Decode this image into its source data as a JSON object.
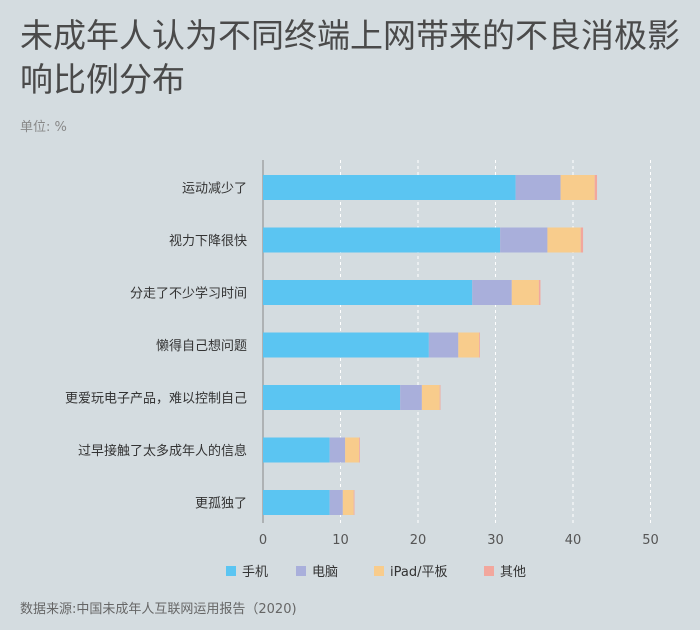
{
  "header": {
    "title": "未成年人认为不同终端上网带来的不良消极影响比例分布",
    "unit": "单位: %"
  },
  "footer": {
    "source": "数据来源:中国未成年人互联网运用报告（2020)"
  },
  "colors": {
    "series": [
      "#5bc5f2",
      "#a9afdb",
      "#f8cc8c",
      "#f2a79d"
    ],
    "grid": "#ffffff",
    "axis": "#555555"
  },
  "chart_data": {
    "type": "bar",
    "orientation": "horizontal",
    "stacked": true,
    "categories": [
      "运动减少了",
      "视力下降很快",
      "分走了不少学习时间",
      "懒得自己想问题",
      "更爱玩电子产品，难以控制自己",
      "过早接触了太多成年人的信息",
      "更孤独了"
    ],
    "series": [
      {
        "name": "手机",
        "values": [
          32.6,
          30.6,
          27.0,
          21.4,
          17.7,
          8.6,
          8.6
        ]
      },
      {
        "name": "电脑",
        "values": [
          5.8,
          6.1,
          5.1,
          3.8,
          2.8,
          2.0,
          1.7
        ]
      },
      {
        "name": "iPad/平板",
        "values": [
          4.4,
          4.3,
          3.5,
          2.7,
          2.3,
          1.8,
          1.4
        ]
      },
      {
        "name": "其他",
        "values": [
          0.3,
          0.3,
          0.2,
          0.1,
          0.1,
          0.1,
          0.1
        ]
      }
    ],
    "xlim": [
      0,
      50
    ],
    "xticks": [
      0,
      10,
      20,
      30,
      40,
      50
    ],
    "grid": "vertical-dashed",
    "legend": "bottom"
  }
}
